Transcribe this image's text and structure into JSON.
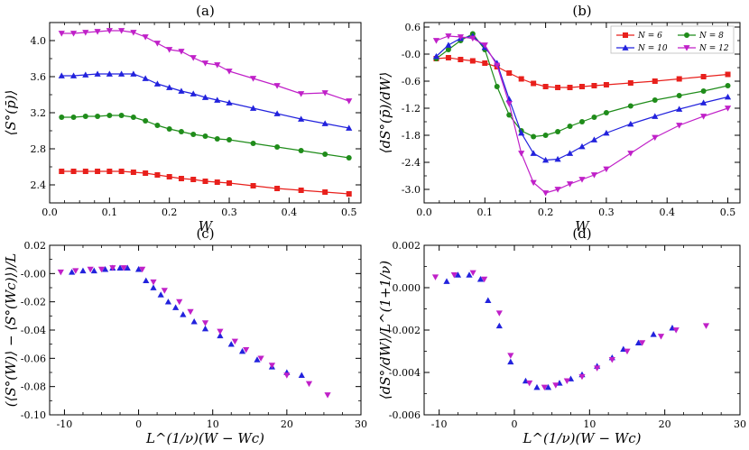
{
  "figure": {
    "background": "#ffffff"
  },
  "colors": {
    "N6": "#e8201c",
    "N8": "#1f8c1a",
    "N10": "#2222dd",
    "N12": "#c020c8"
  },
  "chart_data": [
    {
      "id": "a",
      "panel_title": "(a)",
      "type": "line",
      "xlabel": "W",
      "ylabel": "⟨S°(p̄)⟩",
      "xlim": [
        0.0,
        0.52
      ],
      "ylim": [
        2.2,
        4.2
      ],
      "xticks": [
        0.0,
        0.1,
        0.2,
        0.3,
        0.4,
        0.5
      ],
      "xtick_labels": [
        "0.0",
        "0.1",
        "0.2",
        "0.3",
        "0.4",
        "0.5"
      ],
      "yticks": [
        2.4,
        2.8,
        3.2,
        3.6,
        4.0
      ],
      "ytick_labels": [
        "2.4",
        "2.8",
        "3.2",
        "3.6",
        "4.0"
      ],
      "series": [
        {
          "name": "N = 6",
          "color_key": "N6",
          "marker": "square",
          "x": [
            0.02,
            0.04,
            0.06,
            0.08,
            0.1,
            0.12,
            0.14,
            0.16,
            0.18,
            0.2,
            0.22,
            0.24,
            0.26,
            0.28,
            0.3,
            0.34,
            0.38,
            0.42,
            0.46,
            0.5
          ],
          "y": [
            2.55,
            2.55,
            2.55,
            2.55,
            2.55,
            2.55,
            2.54,
            2.53,
            2.51,
            2.49,
            2.47,
            2.46,
            2.44,
            2.43,
            2.42,
            2.39,
            2.36,
            2.34,
            2.32,
            2.3
          ]
        },
        {
          "name": "N = 8",
          "color_key": "N8",
          "marker": "circle",
          "x": [
            0.02,
            0.04,
            0.06,
            0.08,
            0.1,
            0.12,
            0.14,
            0.16,
            0.18,
            0.2,
            0.22,
            0.24,
            0.26,
            0.28,
            0.3,
            0.34,
            0.38,
            0.42,
            0.46,
            0.5
          ],
          "y": [
            3.15,
            3.15,
            3.16,
            3.16,
            3.17,
            3.17,
            3.15,
            3.11,
            3.06,
            3.02,
            2.99,
            2.96,
            2.94,
            2.91,
            2.9,
            2.86,
            2.82,
            2.78,
            2.74,
            2.7
          ]
        },
        {
          "name": "N = 10",
          "color_key": "N10",
          "marker": "triangle-up",
          "x": [
            0.02,
            0.04,
            0.06,
            0.08,
            0.1,
            0.12,
            0.14,
            0.16,
            0.18,
            0.2,
            0.22,
            0.24,
            0.26,
            0.28,
            0.3,
            0.34,
            0.38,
            0.42,
            0.46,
            0.5
          ],
          "y": [
            3.61,
            3.61,
            3.62,
            3.63,
            3.63,
            3.63,
            3.63,
            3.58,
            3.52,
            3.48,
            3.44,
            3.41,
            3.37,
            3.34,
            3.31,
            3.25,
            3.19,
            3.13,
            3.08,
            3.03
          ]
        },
        {
          "name": "N = 12",
          "color_key": "N12",
          "marker": "triangle-down",
          "x": [
            0.02,
            0.04,
            0.06,
            0.08,
            0.1,
            0.12,
            0.14,
            0.16,
            0.18,
            0.2,
            0.22,
            0.24,
            0.26,
            0.28,
            0.3,
            0.34,
            0.38,
            0.42,
            0.46,
            0.5
          ],
          "y": [
            4.08,
            4.08,
            4.09,
            4.1,
            4.11,
            4.11,
            4.09,
            4.04,
            3.97,
            3.9,
            3.88,
            3.81,
            3.75,
            3.73,
            3.66,
            3.58,
            3.5,
            3.41,
            3.42,
            3.33
          ]
        }
      ]
    },
    {
      "id": "b",
      "panel_title": "(b)",
      "type": "line",
      "xlabel": "W",
      "ylabel": "⟨dS°(p̄)/dW⟩",
      "xlim": [
        0.0,
        0.52
      ],
      "ylim": [
        -3.3,
        0.7
      ],
      "xticks": [
        0.0,
        0.1,
        0.2,
        0.3,
        0.4,
        0.5
      ],
      "xtick_labels": [
        "0.0",
        "0.1",
        "0.2",
        "0.3",
        "0.4",
        "0.5"
      ],
      "yticks": [
        0.6,
        0.0,
        -0.6,
        -1.2,
        -1.8,
        -2.4,
        -3.0
      ],
      "ytick_labels": [
        "0.6",
        "-0.0",
        "-0.6",
        "-1.2",
        "-1.8",
        "-2.4",
        "-3.0"
      ],
      "legend": {
        "position": "top-right",
        "labels": [
          "N = 6",
          "N = 8",
          "N = 10",
          "N = 12"
        ]
      },
      "series": [
        {
          "name": "N = 6",
          "color_key": "N6",
          "marker": "square",
          "x": [
            0.02,
            0.04,
            0.06,
            0.08,
            0.1,
            0.12,
            0.14,
            0.16,
            0.18,
            0.2,
            0.22,
            0.24,
            0.26,
            0.28,
            0.3,
            0.34,
            0.38,
            0.42,
            0.46,
            0.5
          ],
          "y": [
            -0.1,
            -0.08,
            -0.12,
            -0.15,
            -0.2,
            -0.28,
            -0.42,
            -0.55,
            -0.65,
            -0.72,
            -0.74,
            -0.74,
            -0.72,
            -0.7,
            -0.68,
            -0.64,
            -0.6,
            -0.55,
            -0.5,
            -0.45
          ]
        },
        {
          "name": "N = 8",
          "color_key": "N8",
          "marker": "circle",
          "x": [
            0.02,
            0.04,
            0.06,
            0.08,
            0.1,
            0.12,
            0.14,
            0.16,
            0.18,
            0.2,
            0.22,
            0.24,
            0.26,
            0.28,
            0.3,
            0.34,
            0.38,
            0.42,
            0.46,
            0.5
          ],
          "y": [
            -0.1,
            0.1,
            0.3,
            0.45,
            0.1,
            -0.72,
            -1.35,
            -1.7,
            -1.83,
            -1.8,
            -1.72,
            -1.6,
            -1.5,
            -1.4,
            -1.3,
            -1.15,
            -1.02,
            -0.92,
            -0.82,
            -0.7
          ]
        },
        {
          "name": "N = 10",
          "color_key": "N10",
          "marker": "triangle-up",
          "x": [
            0.02,
            0.04,
            0.06,
            0.08,
            0.1,
            0.12,
            0.14,
            0.16,
            0.18,
            0.2,
            0.22,
            0.24,
            0.26,
            0.28,
            0.3,
            0.34,
            0.38,
            0.42,
            0.46,
            0.5
          ],
          "y": [
            -0.05,
            0.2,
            0.35,
            0.4,
            0.15,
            -0.2,
            -1.0,
            -1.75,
            -2.2,
            -2.35,
            -2.33,
            -2.2,
            -2.05,
            -1.9,
            -1.75,
            -1.55,
            -1.38,
            -1.22,
            -1.08,
            -0.95
          ]
        },
        {
          "name": "N = 12",
          "color_key": "N12",
          "marker": "triangle-down",
          "x": [
            0.02,
            0.04,
            0.06,
            0.08,
            0.1,
            0.12,
            0.14,
            0.16,
            0.18,
            0.2,
            0.22,
            0.24,
            0.26,
            0.28,
            0.3,
            0.34,
            0.38,
            0.42,
            0.46,
            0.5
          ],
          "y": [
            0.3,
            0.4,
            0.38,
            0.35,
            0.2,
            -0.25,
            -1.1,
            -2.2,
            -2.85,
            -3.08,
            -3.0,
            -2.88,
            -2.78,
            -2.68,
            -2.55,
            -2.2,
            -1.85,
            -1.58,
            -1.38,
            -1.2
          ]
        }
      ]
    },
    {
      "id": "c",
      "panel_title": "(c)",
      "type": "scatter",
      "xlabel": "L^(1/ν)(W − Wc)",
      "ylabel": "(⟨S°(W)⟩ − ⟨S°(Wc)⟩)/L",
      "xlim": [
        -12,
        30
      ],
      "ylim": [
        -0.1,
        0.02
      ],
      "xticks": [
        -10,
        0,
        10,
        20,
        30
      ],
      "xtick_labels": [
        "-10",
        "0",
        "10",
        "20",
        "30"
      ],
      "yticks": [
        0.02,
        0.0,
        -0.02,
        -0.04,
        -0.06,
        -0.08,
        -0.1
      ],
      "ytick_labels": [
        "0.02",
        "-0.00",
        "-0.02",
        "-0.04",
        "-0.06",
        "-0.08",
        "-0.10"
      ],
      "series": [
        {
          "name": "N = 10",
          "color_key": "N10",
          "marker": "triangle-up",
          "x": [
            -9,
            -7.5,
            -6,
            -4.5,
            -3.5,
            -2.5,
            -1.5,
            0,
            1,
            2,
            3,
            4,
            5,
            6,
            7.5,
            9,
            11,
            12.5,
            14,
            16,
            18,
            20,
            22
          ],
          "y": [
            0.001,
            0.002,
            0.002,
            0.003,
            0.004,
            0.004,
            0.004,
            0.003,
            -0.005,
            -0.01,
            -0.015,
            -0.02,
            -0.024,
            -0.029,
            -0.034,
            -0.039,
            -0.044,
            -0.05,
            -0.055,
            -0.061,
            -0.066,
            -0.07,
            -0.072
          ]
        },
        {
          "name": "N = 12",
          "color_key": "N12",
          "marker": "triangle-down",
          "x": [
            -10.5,
            -8.5,
            -6.5,
            -5,
            -3.5,
            -2,
            0.5,
            2,
            3.5,
            5.5,
            7,
            9,
            11,
            13,
            14.5,
            16.5,
            18,
            20,
            23,
            25.5
          ],
          "y": [
            0.001,
            0.002,
            0.003,
            0.003,
            0.004,
            0.004,
            0.003,
            -0.006,
            -0.012,
            -0.02,
            -0.027,
            -0.035,
            -0.041,
            -0.048,
            -0.054,
            -0.06,
            -0.065,
            -0.072,
            -0.078,
            -0.086
          ]
        }
      ]
    },
    {
      "id": "d",
      "panel_title": "(d)",
      "type": "scatter",
      "xlabel": "L^(1/ν)(W − Wc)",
      "ylabel": "⟨dS°/dW⟩/L^(1+1/ν)",
      "xlim": [
        -12,
        30
      ],
      "ylim": [
        -0.006,
        0.002
      ],
      "xticks": [
        -10,
        0,
        10,
        20,
        30
      ],
      "xtick_labels": [
        "-10",
        "0",
        "10",
        "20",
        "30"
      ],
      "yticks": [
        0.002,
        0.0,
        -0.002,
        -0.004,
        -0.006
      ],
      "ytick_labels": [
        "0.002",
        "0.000",
        "-0.002",
        "-0.004",
        "-0.006"
      ],
      "series": [
        {
          "name": "N = 10",
          "color_key": "N10",
          "marker": "triangle-up",
          "x": [
            -9,
            -7.5,
            -6,
            -4.5,
            -3.5,
            -2,
            -0.5,
            1.5,
            3,
            4.5,
            6,
            7.5,
            9,
            11,
            13,
            14.5,
            16.5,
            18.5,
            21
          ],
          "y": [
            0.0003,
            0.0006,
            0.0006,
            0.0004,
            -0.0006,
            -0.0018,
            -0.0035,
            -0.0044,
            -0.0047,
            -0.0047,
            -0.0045,
            -0.0043,
            -0.0041,
            -0.0037,
            -0.0033,
            -0.0029,
            -0.0026,
            -0.0022,
            -0.0019
          ]
        },
        {
          "name": "N = 12",
          "color_key": "N12",
          "marker": "triangle-down",
          "x": [
            -10.5,
            -8,
            -5.5,
            -4,
            -2,
            -0.5,
            2,
            4,
            5.5,
            7,
            9,
            11,
            13,
            15,
            17,
            19.5,
            21.5,
            25.5
          ],
          "y": [
            0.0005,
            0.0006,
            0.0007,
            0.0004,
            -0.0012,
            -0.0032,
            -0.0045,
            -0.0047,
            -0.0046,
            -0.0044,
            -0.0042,
            -0.0038,
            -0.0034,
            -0.003,
            -0.0026,
            -0.0023,
            -0.002,
            -0.0018
          ]
        }
      ]
    }
  ]
}
